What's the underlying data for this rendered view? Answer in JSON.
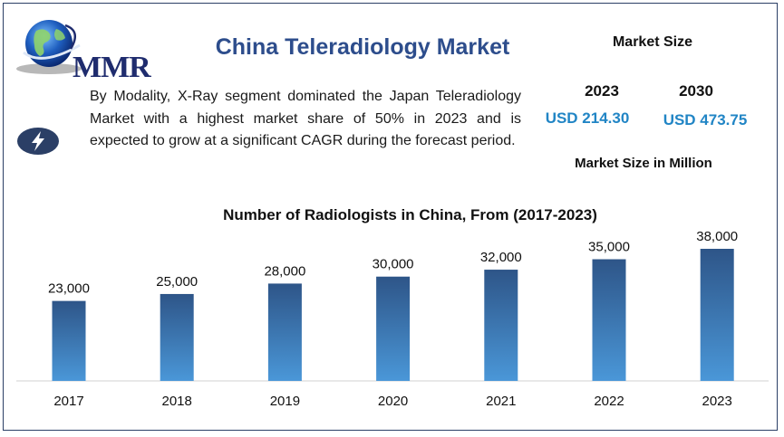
{
  "header": {
    "logo_text": "MMR",
    "title": "China Teleradiology Market"
  },
  "description": "By Modality, X-Ray segment dominated the Japan Teleradiology Market with a highest market share of 50% in 2023 and is expected to grow at a significant CAGR during the forecast period.",
  "market_size": {
    "title": "Market Size",
    "items": [
      {
        "year": "2023",
        "value": "USD 214.30"
      },
      {
        "year": "2030",
        "value": "USD 473.75"
      }
    ],
    "unit_label": "Market Size in Million"
  },
  "colors": {
    "bar_top": "#2e5588",
    "bar_bottom": "#4a97d8",
    "value_text": "#2185c5",
    "title_text": "#2d4d8c",
    "icon_bg": "#2b3f66"
  },
  "chart_data": {
    "type": "bar",
    "title": "Number of Radiologists in China, From (2017-2023)",
    "categories": [
      "2017",
      "2018",
      "2019",
      "2020",
      "2021",
      "2022",
      "2023"
    ],
    "values": [
      23000,
      25000,
      28000,
      30000,
      32000,
      35000,
      38000
    ],
    "value_labels": [
      "23,000",
      "25,000",
      "28,000",
      "30,000",
      "32,000",
      "35,000",
      "38,000"
    ],
    "xlabel": "",
    "ylabel": "",
    "grid": false,
    "legend": "none"
  }
}
